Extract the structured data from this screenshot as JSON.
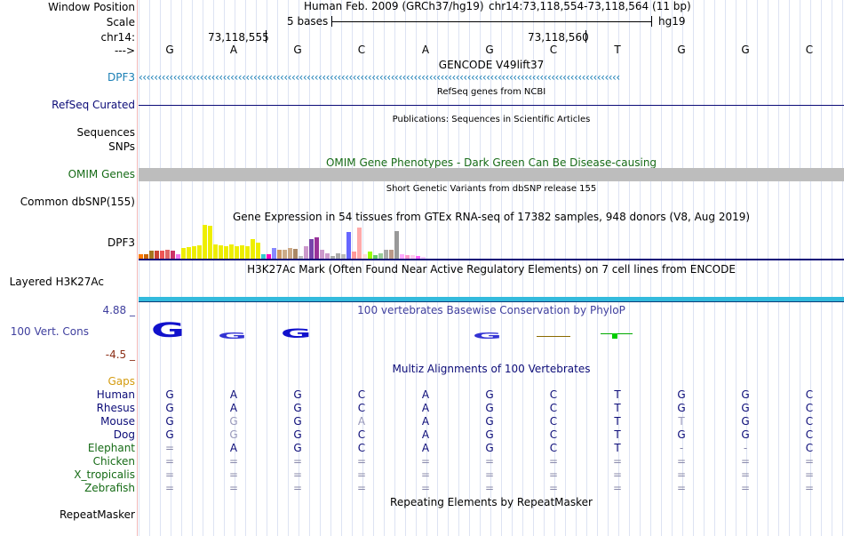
{
  "header": {
    "window_position_label": "Window Position",
    "scale_label": "Scale",
    "chrom_label": "chr14:",
    "strand_label": "--->",
    "assembly": "Human Feb. 2009 (GRCh37/hg19)",
    "position": "chr14:73,118,554-73,118,564 (11 bp)",
    "scale_text": "5 bases",
    "db": "hg19",
    "tick_left": "73,118,555",
    "tick_right": "73,118,560",
    "bases": [
      "G",
      "A",
      "G",
      "C",
      "A",
      "G",
      "C",
      "T",
      "G",
      "G",
      "C"
    ]
  },
  "tracks": {
    "gencode": {
      "title": "GENCODE V49lift37",
      "label": "DPF3",
      "arrows": "‹‹‹‹‹‹‹‹‹‹‹‹‹‹‹‹‹‹‹‹‹‹‹‹‹‹‹‹‹‹‹‹‹‹‹‹‹‹‹‹‹‹‹‹‹‹‹‹‹‹‹‹‹‹‹‹‹‹‹‹‹‹‹‹‹‹‹‹‹‹‹‹‹‹‹‹‹‹‹‹‹‹‹‹‹‹‹‹‹‹‹‹‹‹‹‹‹‹‹‹‹‹‹‹‹‹‹‹‹‹‹‹‹‹‹‹‹‹‹‹‹‹‹‹‹‹"
    },
    "refseq": {
      "title": "RefSeq genes from NCBI",
      "label": "RefSeq Curated"
    },
    "publications": {
      "title": "Publications: Sequences in Scientific Articles",
      "label1": "Sequences",
      "label2": "SNPs"
    },
    "omim": {
      "title": "OMIM Gene Phenotypes - Dark Green Can Be Disease-causing",
      "label": "OMIM Genes"
    },
    "dbsnp": {
      "title": "Short Genetic Variants from dbSNP release 155",
      "label": "Common dbSNP(155)"
    },
    "gtex": {
      "title": "Gene Expression in 54 tissues from GTEx RNA-seq of 17382 samples, 948 donors (V8, Aug 2019)",
      "label": "DPF3",
      "bars": [
        {
          "v": 0.12,
          "c": "#ff7a00"
        },
        {
          "v": 0.12,
          "c": "#cc6600"
        },
        {
          "v": 0.22,
          "c": "#a6761d"
        },
        {
          "v": 0.22,
          "c": "#cc4433"
        },
        {
          "v": 0.22,
          "c": "#ee5555"
        },
        {
          "v": 0.26,
          "c": "#e06666"
        },
        {
          "v": 0.22,
          "c": "#cc3366"
        },
        {
          "v": 0.12,
          "c": "#ee77ee"
        },
        {
          "v": 0.3,
          "c": "#eeee00"
        },
        {
          "v": 0.32,
          "c": "#eeee00"
        },
        {
          "v": 0.36,
          "c": "#eeee00"
        },
        {
          "v": 0.38,
          "c": "#eeee00"
        },
        {
          "v": 0.96,
          "c": "#eeee00"
        },
        {
          "v": 0.92,
          "c": "#eeee00"
        },
        {
          "v": 0.4,
          "c": "#eeee00"
        },
        {
          "v": 0.38,
          "c": "#eeee00"
        },
        {
          "v": 0.36,
          "c": "#eeee00"
        },
        {
          "v": 0.4,
          "c": "#eeee00"
        },
        {
          "v": 0.36,
          "c": "#eeee00"
        },
        {
          "v": 0.38,
          "c": "#eeee00"
        },
        {
          "v": 0.36,
          "c": "#eeee00"
        },
        {
          "v": 0.56,
          "c": "#eeee00"
        },
        {
          "v": 0.46,
          "c": "#eeee00"
        },
        {
          "v": 0.12,
          "c": "#33cccc"
        },
        {
          "v": 0.12,
          "c": "#ff00bb"
        },
        {
          "v": 0.3,
          "c": "#8888ff"
        },
        {
          "v": 0.26,
          "c": "#cc9966"
        },
        {
          "v": 0.26,
          "c": "#ccaa88"
        },
        {
          "v": 0.3,
          "c": "#ccaa88"
        },
        {
          "v": 0.28,
          "c": "#aa8866"
        },
        {
          "v": 0.08,
          "c": "#bbbbbb"
        },
        {
          "v": 0.36,
          "c": "#cc99cc"
        },
        {
          "v": 0.56,
          "c": "#7744aa"
        },
        {
          "v": 0.6,
          "c": "#993399"
        },
        {
          "v": 0.24,
          "c": "#cc99cc"
        },
        {
          "v": 0.14,
          "c": "#cc99cc"
        },
        {
          "v": 0.08,
          "c": "#aaaaaa"
        },
        {
          "v": 0.14,
          "c": "#aaaaaa"
        },
        {
          "v": 0.12,
          "c": "#bbbbbb"
        },
        {
          "v": 0.74,
          "c": "#6666ff"
        },
        {
          "v": 0.2,
          "c": "#ff9999"
        },
        {
          "v": 0.88,
          "c": "#ffaaaa"
        },
        {
          "v": 0.12,
          "c": "#ffdddd"
        },
        {
          "v": 0.2,
          "c": "#99ff00"
        },
        {
          "v": 0.1,
          "c": "#66cc66"
        },
        {
          "v": 0.16,
          "c": "#99cc99"
        },
        {
          "v": 0.24,
          "c": "#aaaaaa"
        },
        {
          "v": 0.26,
          "c": "#bb9988"
        },
        {
          "v": 0.78,
          "c": "#999999"
        },
        {
          "v": 0.12,
          "c": "#ffaaff"
        },
        {
          "v": 0.1,
          "c": "#ff99cc"
        },
        {
          "v": 0.1,
          "c": "#ffccee"
        },
        {
          "v": 0.08,
          "c": "#ff66ff"
        },
        {
          "v": 0.04,
          "c": "#ffccff"
        }
      ]
    },
    "h3k27ac": {
      "title": "H3K27Ac Mark (Often Found Near Active Regulatory Elements) on 7 cell lines from ENCODE",
      "label": "Layered H3K27Ac"
    },
    "phylop": {
      "title": "100 vertebrates Basewise Conservation by PhyloP",
      "label": "100 Vert. Cons",
      "max": "4.88 _",
      "min": "-4.5 _"
    },
    "multiz": {
      "title": "Multiz Alignments of 100 Vertebrates",
      "gaps_label": "Gaps",
      "species": [
        {
          "name": "Human",
          "bases": [
            "G",
            "A",
            "G",
            "C",
            "A",
            "G",
            "C",
            "T",
            "G",
            "G",
            "C"
          ]
        },
        {
          "name": "Rhesus",
          "bases": [
            "G",
            "A",
            "G",
            "C",
            "A",
            "G",
            "C",
            "T",
            "G",
            "G",
            "C"
          ]
        },
        {
          "name": "Mouse",
          "bases": [
            "G",
            "G",
            "G",
            "A",
            "A",
            "G",
            "C",
            "T",
            "T",
            "G",
            "C"
          ]
        },
        {
          "name": "Dog",
          "bases": [
            "G",
            "G",
            "G",
            "C",
            "A",
            "G",
            "C",
            "T",
            "G",
            "G",
            "C"
          ]
        },
        {
          "name": "Elephant",
          "bases": [
            "=",
            "A",
            "G",
            "C",
            "A",
            "G",
            "C",
            "T",
            "-",
            "-",
            "C"
          ]
        },
        {
          "name": "Chicken",
          "bases": [
            "=",
            "=",
            "=",
            "=",
            "=",
            "=",
            "=",
            "=",
            "=",
            "=",
            "="
          ]
        },
        {
          "name": "X_tropicalis",
          "bases": [
            "=",
            "=",
            "=",
            "=",
            "=",
            "=",
            "=",
            "=",
            "=",
            "=",
            "="
          ]
        },
        {
          "name": "Zebrafish",
          "bases": [
            "=",
            "=",
            "=",
            "=",
            "=",
            "=",
            "=",
            "=",
            "=",
            "=",
            "="
          ]
        }
      ]
    },
    "repeatmasker": {
      "title": "Repeating Elements by RepeatMasker",
      "label": "RepeatMasker"
    }
  },
  "colors": {
    "gene_blue": "#1a7fb5",
    "navy": "#0c0c78",
    "omim_green": "#166b16",
    "conservation": "#3f3f9e",
    "phylop_min": "#8b2e16",
    "gaps": "#d49b0f",
    "multiz_human": "#0c0c78",
    "multiz_mammal": "#0c0c78",
    "multiz_other": "#166b16",
    "h3k27ac": "#33bbdd",
    "omim_bar": "#bdbdbd"
  }
}
